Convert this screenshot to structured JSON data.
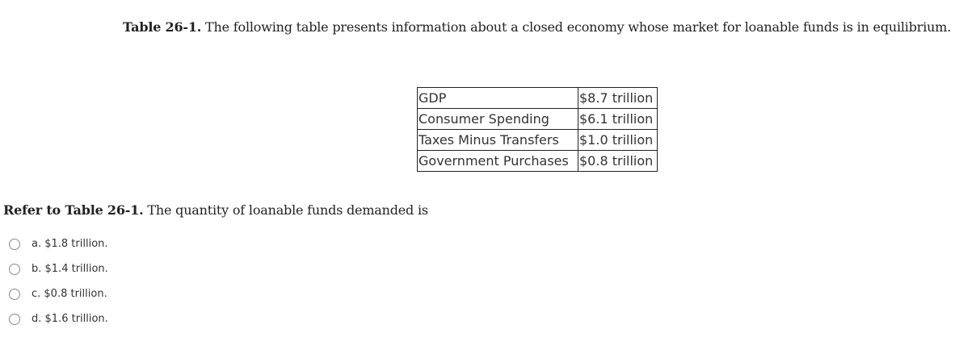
{
  "caption": {
    "bold": "Table 26-1.",
    "text": " The following table presents information about a closed economy whose market for loanable funds is in equilibrium."
  },
  "table": {
    "rows": [
      {
        "label": "GDP",
        "value": "$8.7 trillion"
      },
      {
        "label": "Consumer Spending",
        "value": "$6.1 trillion"
      },
      {
        "label": "Taxes Minus Transfers",
        "value": "$1.0 trillion"
      },
      {
        "label": "Government Purchases",
        "value": "$0.8 trillion"
      }
    ]
  },
  "question": {
    "bold": "Refer to Table 26-1.",
    "text": " The quantity of loanable funds demanded is"
  },
  "options": [
    {
      "label": "a. $1.8 trillion."
    },
    {
      "label": "b. $1.4 trillion."
    },
    {
      "label": "c. $0.8 trillion."
    },
    {
      "label": "d. $1.6 trillion."
    }
  ]
}
